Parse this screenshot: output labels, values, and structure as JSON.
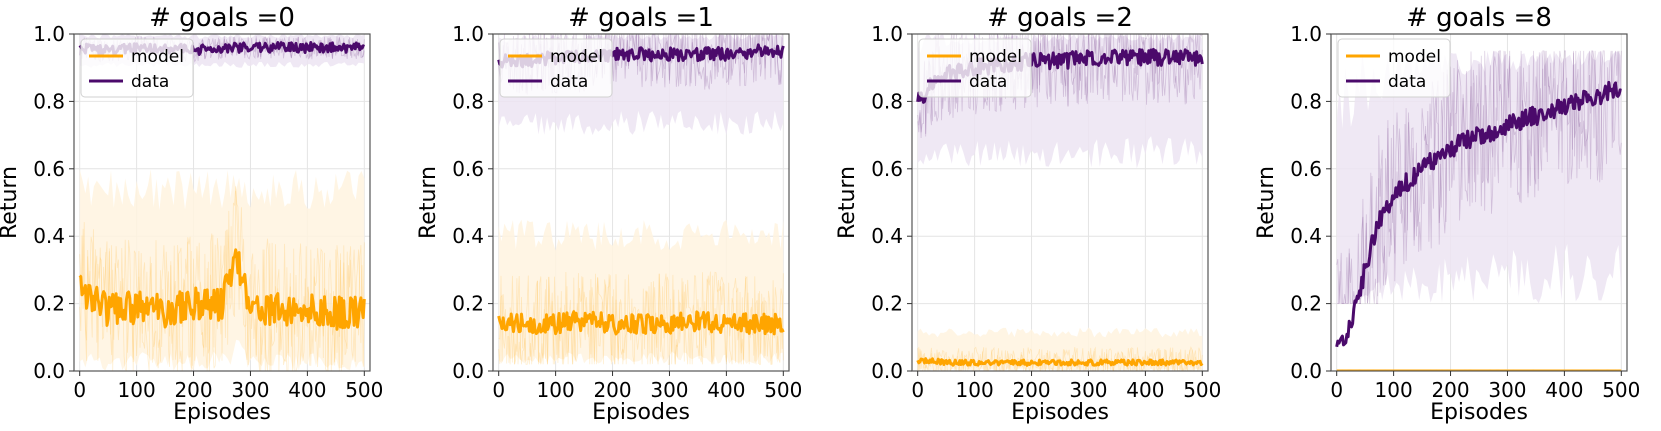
{
  "colors": {
    "model": "#ffa500",
    "data": "#4b0a6b",
    "model_band": "#fff3df",
    "data_band": "#ece4f2"
  },
  "chart_data": [
    {
      "type": "line",
      "title": "# goals $=0$",
      "title_display": "# goals =0",
      "xlabel": "Episodes",
      "ylabel": "Return",
      "xlim": [
        -10,
        510
      ],
      "ylim": [
        0,
        1
      ],
      "xticks": [
        0,
        100,
        200,
        300,
        400,
        500
      ],
      "yticks": [
        0.0,
        0.2,
        0.4,
        0.6,
        0.8,
        1.0
      ],
      "grid": true,
      "legend": "upper-left",
      "x": [
        0,
        50,
        100,
        150,
        200,
        250,
        275,
        300,
        350,
        400,
        450,
        500
      ],
      "series": [
        {
          "name": "model",
          "values": [
            0.25,
            0.18,
            0.19,
            0.18,
            0.2,
            0.2,
            0.35,
            0.19,
            0.18,
            0.18,
            0.17,
            0.18
          ],
          "band": [
            0.0,
            0.6
          ],
          "noise": 0.05
        },
        {
          "name": "data",
          "values": [
            0.96,
            0.95,
            0.96,
            0.96,
            0.95,
            0.96,
            0.96,
            0.96,
            0.96,
            0.96,
            0.96,
            0.96
          ],
          "band": [
            0.9,
            1.0
          ],
          "noise": 0.015
        }
      ]
    },
    {
      "type": "line",
      "title": "# goals $=1$",
      "title_display": "# goals =1",
      "xlabel": "Episodes",
      "ylabel": "Return",
      "xlim": [
        -10,
        510
      ],
      "ylim": [
        0,
        1
      ],
      "xticks": [
        0,
        100,
        200,
        300,
        400,
        500
      ],
      "yticks": [
        0.0,
        0.2,
        0.4,
        0.6,
        0.8,
        1.0
      ],
      "grid": true,
      "legend": "upper-left",
      "x": [
        0,
        50,
        100,
        150,
        200,
        250,
        300,
        350,
        400,
        450,
        500
      ],
      "series": [
        {
          "name": "model",
          "values": [
            0.15,
            0.14,
            0.14,
            0.15,
            0.14,
            0.14,
            0.14,
            0.15,
            0.14,
            0.14,
            0.14
          ],
          "band": [
            0.02,
            0.45
          ],
          "noise": 0.03
        },
        {
          "name": "data",
          "values": [
            0.92,
            0.92,
            0.93,
            0.93,
            0.94,
            0.94,
            0.94,
            0.94,
            0.94,
            0.95,
            0.95
          ],
          "band": [
            0.7,
            1.0
          ],
          "noise": 0.02
        }
      ]
    },
    {
      "type": "line",
      "title": "# goals $=2$",
      "title_display": "# goals =2",
      "xlabel": "Episodes",
      "ylabel": "Return",
      "xlim": [
        -10,
        510
      ],
      "ylim": [
        0,
        1
      ],
      "xticks": [
        0,
        100,
        200,
        300,
        400,
        500
      ],
      "yticks": [
        0.0,
        0.2,
        0.4,
        0.6,
        0.8,
        1.0
      ],
      "grid": true,
      "legend": "upper-left",
      "x": [
        0,
        25,
        50,
        100,
        150,
        200,
        250,
        300,
        350,
        400,
        450,
        500
      ],
      "series": [
        {
          "name": "model",
          "values": [
            0.03,
            0.03,
            0.025,
            0.025,
            0.025,
            0.025,
            0.025,
            0.025,
            0.025,
            0.025,
            0.025,
            0.025
          ],
          "band": [
            0.0,
            0.13
          ],
          "noise": 0.008
        },
        {
          "name": "data",
          "values": [
            0.8,
            0.85,
            0.88,
            0.9,
            0.91,
            0.92,
            0.92,
            0.93,
            0.93,
            0.93,
            0.93,
            0.93
          ],
          "band": [
            0.6,
            1.0
          ],
          "noise": 0.025
        }
      ]
    },
    {
      "type": "line",
      "title": "# goals $=8$",
      "title_display": "# goals =8",
      "xlabel": "Episodes",
      "ylabel": "Return",
      "xlim": [
        -10,
        510
      ],
      "ylim": [
        0,
        1
      ],
      "xticks": [
        0,
        100,
        200,
        300,
        400,
        500
      ],
      "yticks": [
        0.0,
        0.2,
        0.4,
        0.6,
        0.8,
        1.0
      ],
      "grid": true,
      "legend": "upper-left",
      "x": [
        0,
        20,
        50,
        75,
        100,
        150,
        200,
        250,
        300,
        350,
        400,
        450,
        500
      ],
      "series": [
        {
          "name": "model",
          "values": [
            0,
            0,
            0,
            0,
            0,
            0,
            0,
            0,
            0,
            0,
            0,
            0,
            0
          ],
          "band": [
            0.0,
            0.005
          ],
          "noise": 0.0
        },
        {
          "name": "data",
          "values": [
            0.08,
            0.12,
            0.3,
            0.45,
            0.52,
            0.6,
            0.66,
            0.7,
            0.73,
            0.76,
            0.79,
            0.81,
            0.84
          ],
          "band": [
            0.2,
            0.95
          ],
          "noise": 0.03
        }
      ]
    }
  ]
}
